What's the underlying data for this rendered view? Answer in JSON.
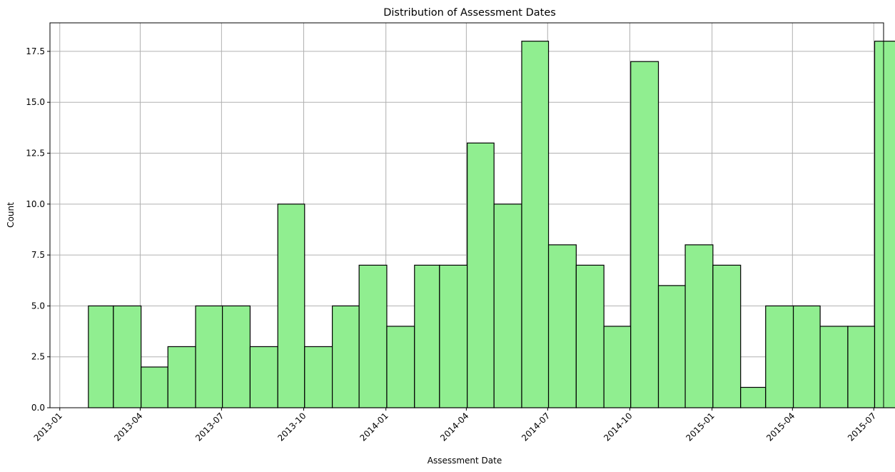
{
  "chart_data": {
    "type": "bar",
    "title": "Distribution of Assessment Dates",
    "xlabel": "Assessment Date",
    "ylabel": "Count",
    "bar_color": "#90ee90",
    "edge_color": "#000000",
    "grid": true,
    "bins": [
      {
        "start": "2013-02-02",
        "end": "2013-03-02",
        "count": 5
      },
      {
        "start": "2013-03-02",
        "end": "2013-04-02",
        "count": 5
      },
      {
        "start": "2013-04-02",
        "end": "2013-05-02",
        "count": 2
      },
      {
        "start": "2013-05-02",
        "end": "2013-06-02",
        "count": 3
      },
      {
        "start": "2013-06-02",
        "end": "2013-07-02",
        "count": 5
      },
      {
        "start": "2013-07-02",
        "end": "2013-08-02",
        "count": 5
      },
      {
        "start": "2013-08-02",
        "end": "2013-09-02",
        "count": 3
      },
      {
        "start": "2013-09-02",
        "end": "2013-10-02",
        "count": 10
      },
      {
        "start": "2013-10-02",
        "end": "2013-11-02",
        "count": 3
      },
      {
        "start": "2013-11-02",
        "end": "2013-12-02",
        "count": 5
      },
      {
        "start": "2013-12-02",
        "end": "2014-01-02",
        "count": 7
      },
      {
        "start": "2014-01-02",
        "end": "2014-02-02",
        "count": 4
      },
      {
        "start": "2014-02-02",
        "end": "2014-03-02",
        "count": 7
      },
      {
        "start": "2014-03-02",
        "end": "2014-04-02",
        "count": 7
      },
      {
        "start": "2014-04-02",
        "end": "2014-05-02",
        "count": 13
      },
      {
        "start": "2014-05-02",
        "end": "2014-06-02",
        "count": 10
      },
      {
        "start": "2014-06-02",
        "end": "2014-07-02",
        "count": 18
      },
      {
        "start": "2014-07-02",
        "end": "2014-08-02",
        "count": 8
      },
      {
        "start": "2014-08-02",
        "end": "2014-09-02",
        "count": 7
      },
      {
        "start": "2014-09-02",
        "end": "2014-10-02",
        "count": 4
      },
      {
        "start": "2014-10-02",
        "end": "2014-11-02",
        "count": 17
      },
      {
        "start": "2014-11-02",
        "end": "2014-12-02",
        "count": 6
      },
      {
        "start": "2014-12-02",
        "end": "2015-01-02",
        "count": 8
      },
      {
        "start": "2015-01-02",
        "end": "2015-02-02",
        "count": 7
      },
      {
        "start": "2015-02-02",
        "end": "2015-03-02",
        "count": 1
      },
      {
        "start": "2015-03-02",
        "end": "2015-04-02",
        "count": 5
      },
      {
        "start": "2015-04-02",
        "end": "2015-05-02",
        "count": 5
      },
      {
        "start": "2015-05-02",
        "end": "2015-06-02",
        "count": 4
      },
      {
        "start": "2015-06-02",
        "end": "2015-07-02",
        "count": 4
      },
      {
        "start": "2015-07-02",
        "end": "2015-08-02",
        "count": 18
      }
    ],
    "xlim": [
      "2012-12-21",
      "2015-07-12"
    ],
    "ylim": [
      0,
      18.9
    ],
    "xticks": [
      {
        "value": "2013-01-01",
        "label": "2013-01"
      },
      {
        "value": "2013-04-01",
        "label": "2013-04"
      },
      {
        "value": "2013-07-01",
        "label": "2013-07"
      },
      {
        "value": "2013-10-01",
        "label": "2013-10"
      },
      {
        "value": "2014-01-01",
        "label": "2014-01"
      },
      {
        "value": "2014-04-01",
        "label": "2014-04"
      },
      {
        "value": "2014-07-01",
        "label": "2014-07"
      },
      {
        "value": "2014-10-01",
        "label": "2014-10"
      },
      {
        "value": "2015-01-01",
        "label": "2015-01"
      },
      {
        "value": "2015-04-01",
        "label": "2015-04"
      },
      {
        "value": "2015-07-01",
        "label": "2015-07"
      }
    ],
    "yticks": [
      {
        "value": 0,
        "label": "0.0"
      },
      {
        "value": 2.5,
        "label": "2.5"
      },
      {
        "value": 5,
        "label": "5.0"
      },
      {
        "value": 7.5,
        "label": "7.5"
      },
      {
        "value": 10,
        "label": "10.0"
      },
      {
        "value": 12.5,
        "label": "12.5"
      },
      {
        "value": 15,
        "label": "15.0"
      },
      {
        "value": 17.5,
        "label": "17.5"
      }
    ],
    "xtick_rotation_deg": 45
  }
}
